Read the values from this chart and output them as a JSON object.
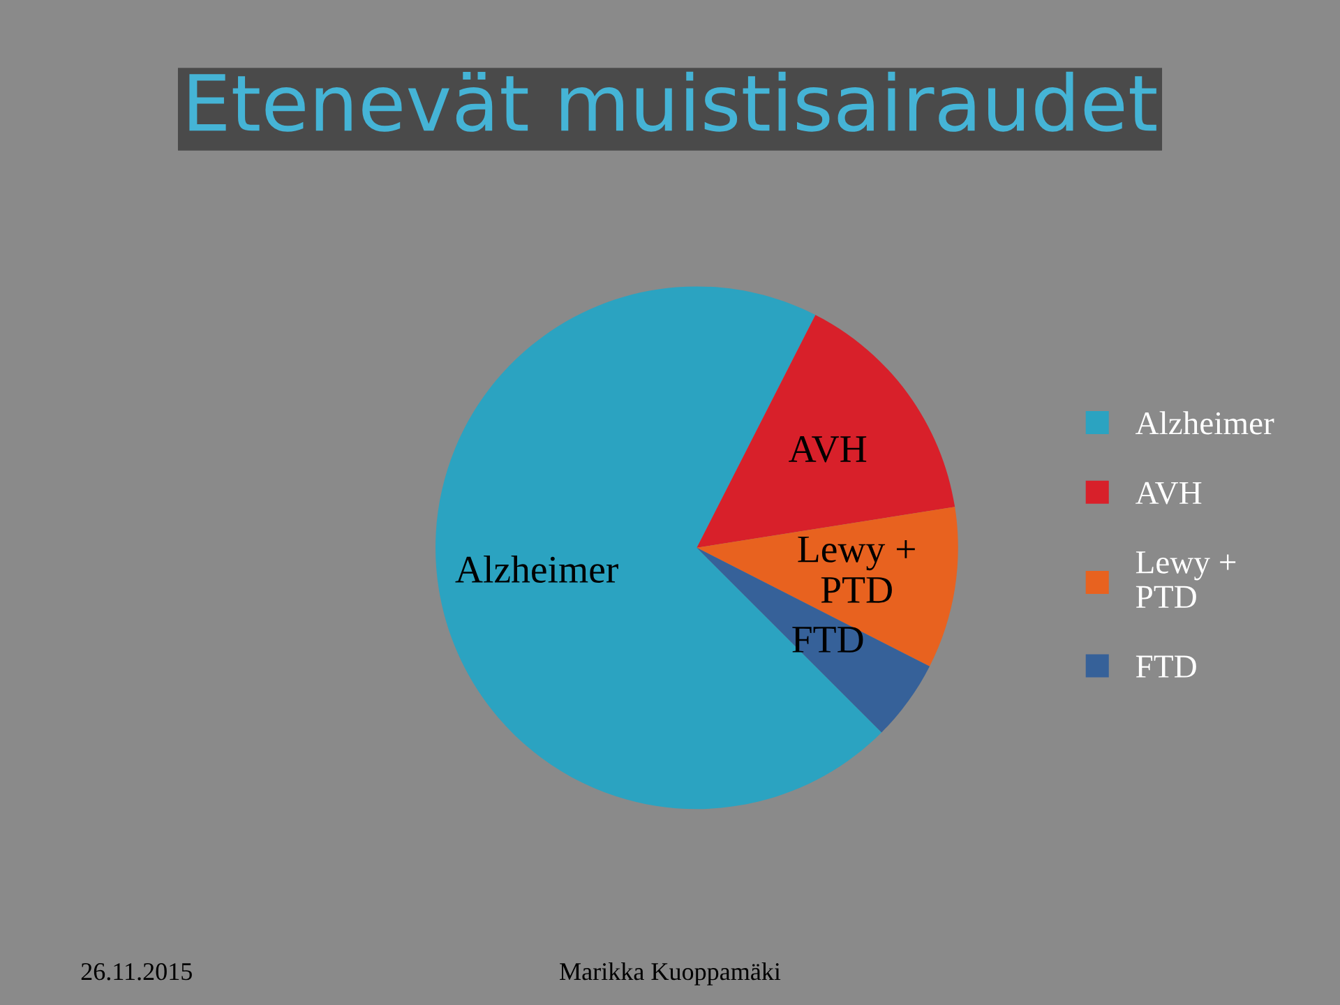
{
  "chart_data": {
    "type": "pie",
    "title": "Etenevät muistisairaudet",
    "categories": [
      "Alzheimer",
      "AVH",
      "Lewy +\nPTD",
      "FTD"
    ],
    "values": [
      70,
      15,
      10,
      5
    ],
    "colors": [
      "#2ba3c1",
      "#d8202a",
      "#e8621f",
      "#366199"
    ],
    "legend": "right",
    "annotations": [
      "26.11.2015",
      "Marikka Kuoppamäki"
    ]
  }
}
